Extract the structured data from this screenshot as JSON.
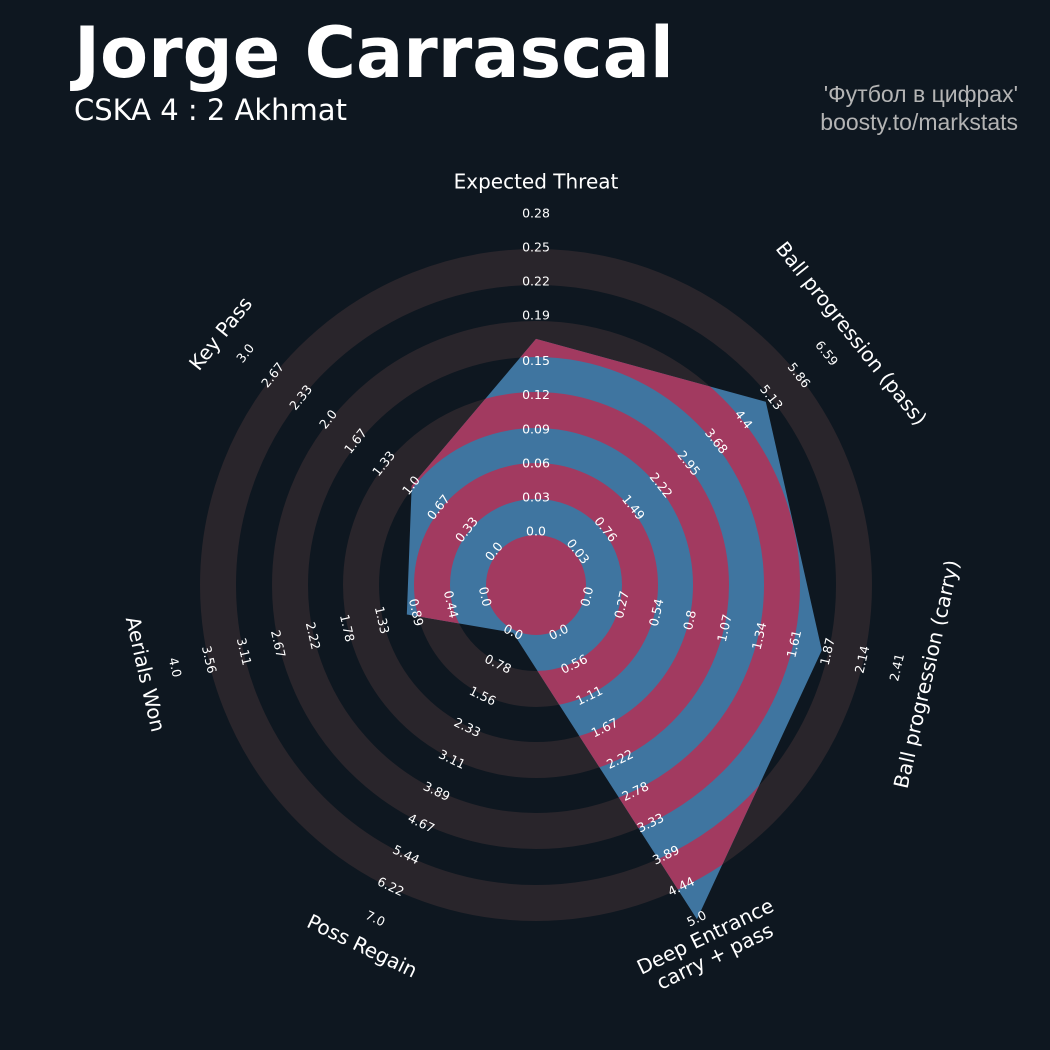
{
  "chart_data": {
    "type": "radar",
    "title": "Jorge Carrascal",
    "subtitle": "CSKA 4 : 2 Akhmat",
    "credits": [
      "'Футбол в цифрах'",
      "boosty.to/markstats"
    ],
    "color": "#3f75a0",
    "alt_color": "#a23a60",
    "ring_color": "#29252b",
    "axes": [
      {
        "name": "Expected Threat",
        "range": [
          0,
          0.28
        ],
        "ticks": [
          {
            "value": 0,
            "label": "0.0"
          },
          0.03,
          0.06,
          0.09,
          0.12,
          0.15,
          0.19,
          0.22,
          0.25,
          0.28
        ]
      },
      {
        "name": "Ball progression (pass)",
        "range": [
          0.03,
          6.59
        ],
        "ticks": [
          0.03,
          0.76,
          1.49,
          2.22,
          2.95,
          3.68,
          4.4,
          5.13,
          5.86,
          6.59
        ]
      },
      {
        "name": "Ball progression (carry)",
        "range": [
          0,
          2.41
        ],
        "ticks": [
          {
            "value": 0,
            "label": "0.0"
          },
          0.27,
          0.54,
          0.8,
          1.07,
          1.34,
          1.61,
          1.87,
          2.14,
          2.41
        ]
      },
      {
        "name": "Deep Entrance\ncarry + pass",
        "range": [
          0,
          5
        ],
        "ticks": [
          {
            "value": 0,
            "label": "0.0"
          },
          0.56,
          1.11,
          1.67,
          2.22,
          2.78,
          3.33,
          3.89,
          4.44,
          {
            "value": 5,
            "label": "5.0"
          }
        ]
      },
      {
        "name": "Poss Regain",
        "range": [
          0,
          7
        ],
        "ticks": [
          {
            "value": 0,
            "label": "0.0"
          },
          0.78,
          1.56,
          2.33,
          3.11,
          3.89,
          4.67,
          5.44,
          6.22,
          {
            "value": 7,
            "label": "7.0"
          }
        ]
      },
      {
        "name": "Aerials Won",
        "range": [
          0,
          4
        ],
        "ticks": [
          {
            "value": 0,
            "label": "0.0"
          },
          0.44,
          0.89,
          1.33,
          1.78,
          2.22,
          2.67,
          3.11,
          3.56,
          {
            "value": 4,
            "label": "4.0"
          }
        ]
      },
      {
        "name": "Key Pass",
        "range": [
          0,
          3
        ],
        "ticks": [
          {
            "value": 0,
            "label": "0.0"
          },
          0.33,
          0.67,
          {
            "value": 1,
            "label": "1.0"
          },
          1.33,
          1.67,
          {
            "value": 2,
            "label": "2.0"
          },
          2.33,
          2.67,
          {
            "value": 3,
            "label": "3.0"
          }
        ]
      }
    ],
    "values": [
      0.17,
      5.0,
      1.82,
      5.0,
      0,
      1.0,
      1.0
    ]
  }
}
